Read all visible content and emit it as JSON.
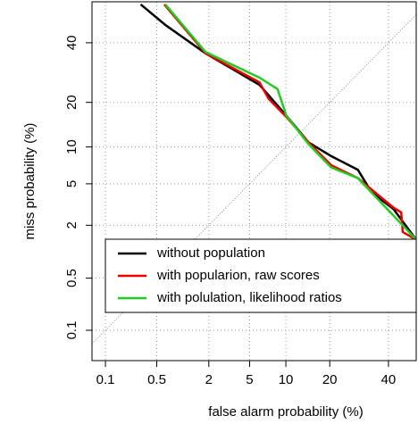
{
  "chart_data": {
    "type": "line",
    "scale": "probit",
    "xlabel": "false alarm probability (%)",
    "ylabel": "miss probability (%)",
    "xlim": [
      0.063,
      51
    ],
    "ylim": [
      0.035,
      56
    ],
    "xticks": [
      0.1,
      0.5,
      2,
      5,
      10,
      20,
      40
    ],
    "yticks": [
      0.1,
      0.5,
      2,
      5,
      10,
      20,
      40
    ],
    "grid": true,
    "legend": "bottomright",
    "series": [
      {
        "name": "without population",
        "color": "#000000",
        "x": [
          0.31,
          0.64,
          1.85,
          6.1,
          10.1,
          14.6,
          20.4,
          28.8,
          33.6,
          42,
          51
        ],
        "values": [
          55,
          46.9,
          36,
          25.2,
          16.5,
          10.8,
          8.5,
          6.6,
          4.2,
          2.9,
          1.4
        ]
      },
      {
        "name": "with popularion, raw scores",
        "color": "#ee0000",
        "x": [
          0.62,
          1.85,
          6.1,
          7.3,
          10.1,
          14.6,
          20.4,
          28.8,
          42,
          45,
          45.6,
          51
        ],
        "values": [
          55,
          36,
          26,
          21,
          16.2,
          10.8,
          7.2,
          5.6,
          3.0,
          2.7,
          1.7,
          1.4
        ]
      },
      {
        "name": "with polulation, likelihood ratios",
        "color": "#22cc22",
        "x": [
          0.64,
          1.85,
          6.1,
          8.6,
          10.1,
          14.6,
          20.4,
          28.8,
          42,
          51
        ],
        "values": [
          55,
          36.5,
          27.5,
          23.9,
          16.5,
          10.5,
          6.9,
          5.6,
          2.5,
          1.4
        ]
      }
    ]
  }
}
